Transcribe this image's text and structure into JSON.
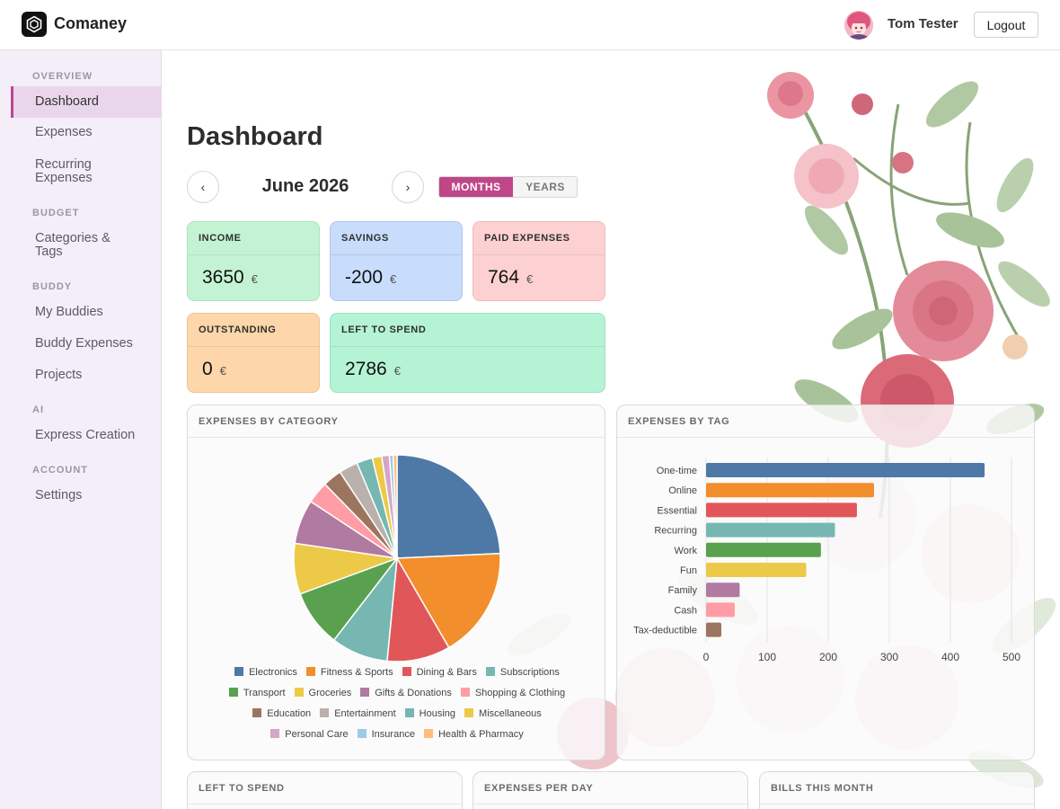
{
  "header": {
    "app_name": "Comaney",
    "user_name": "Tom Tester",
    "logout_label": "Logout",
    "logo_icon": "hexagon-logo-icon",
    "avatar_icon": "user-avatar"
  },
  "sidebar": {
    "sections": [
      {
        "title": "OVERVIEW",
        "items": [
          {
            "label": "Dashboard",
            "active": true
          }
        ]
      },
      {
        "title": "",
        "items": [
          {
            "label": "Expenses"
          },
          {
            "label": "Recurring Expenses"
          }
        ]
      },
      {
        "title": "BUDGET",
        "items": [
          {
            "label": "Categories & Tags"
          }
        ]
      },
      {
        "title": "BUDDY",
        "items": [
          {
            "label": "My Buddies"
          },
          {
            "label": "Buddy Expenses"
          },
          {
            "label": "Projects"
          }
        ]
      },
      {
        "title": "AI",
        "items": [
          {
            "label": "Express Creation"
          }
        ]
      },
      {
        "title": "ACCOUNT",
        "items": [
          {
            "label": "Settings"
          }
        ]
      }
    ],
    "overview_title": "OVERVIEW",
    "budget_title": "BUDGET",
    "buddy_title": "BUDDY",
    "ai_title": "AI",
    "account_title": "ACCOUNT",
    "dashboard": "Dashboard",
    "expenses": "Expenses",
    "recurring_line1": "Recurring",
    "recurring_line2": "Expenses",
    "categories_line1": "Categories &",
    "categories_line2": "Tags",
    "my_buddies": "My Buddies",
    "buddy_expenses": "Buddy Expenses",
    "projects": "Projects",
    "express_creation": "Express Creation",
    "settings": "Settings"
  },
  "main": {
    "title": "Dashboard",
    "period": "June 2026",
    "prev_icon": "chevron-left-icon",
    "next_icon": "chevron-right-icon",
    "prev_glyph": "‹",
    "next_glyph": "›",
    "toggle_months": "MONTHS",
    "toggle_years": "YEARS",
    "toggle_active": "MONTHS"
  },
  "stats": {
    "income": {
      "label": "INCOME",
      "value": "3650",
      "currency": "€",
      "color": "#c3f3d3"
    },
    "savings": {
      "label": "SAVINGS",
      "value": "-200",
      "currency": "€",
      "color": "#c8dcfb"
    },
    "paid": {
      "label": "PAID EXPENSES",
      "value": "764",
      "currency": "€",
      "color": "#fdd1d1"
    },
    "outstanding": {
      "label": "OUTSTANDING",
      "value": "0",
      "currency": "€",
      "color": "#fdd6a9"
    },
    "left": {
      "label": "LEFT TO SPEND",
      "value": "2786",
      "currency": "€",
      "color": "#b4f3d4"
    }
  },
  "cards": {
    "category": "EXPENSES BY CATEGORY",
    "tag": "EXPENSES BY TAG",
    "left_to_spend": "LEFT TO SPEND",
    "per_day": "EXPENSES PER DAY",
    "bills": "BILLS THIS MONTH"
  },
  "chart_data": [
    {
      "type": "pie",
      "title": "EXPENSES BY CATEGORY",
      "legend_position": "bottom",
      "slices": [
        {
          "label": "Electronics",
          "value": 24.5,
          "color": "#4e79a7"
        },
        {
          "label": "Fitness & Sports",
          "value": 17.5,
          "color": "#f28e2b"
        },
        {
          "label": "Dining & Bars",
          "value": 10.0,
          "color": "#e15759"
        },
        {
          "label": "Subscriptions",
          "value": 9.0,
          "color": "#76b7b2"
        },
        {
          "label": "Transport",
          "value": 9.0,
          "color": "#59a14f"
        },
        {
          "label": "Groceries",
          "value": 8.0,
          "color": "#edc948"
        },
        {
          "label": "Gifts & Donations",
          "value": 7.0,
          "color": "#b07aa1"
        },
        {
          "label": "Shopping & Clothing",
          "value": 3.5,
          "color": "#ff9da7"
        },
        {
          "label": "Education",
          "value": 3.0,
          "color": "#9c755f"
        },
        {
          "label": "Entertainment",
          "value": 3.0,
          "color": "#bab0ac"
        },
        {
          "label": "Housing",
          "value": 2.5,
          "color": "#76b7b2"
        },
        {
          "label": "Miscellaneous",
          "value": 1.5,
          "color": "#edc948"
        },
        {
          "label": "Personal Care",
          "value": 1.2,
          "color": "#d4a6c8"
        },
        {
          "label": "Insurance",
          "value": 0.6,
          "color": "#9ecae9"
        },
        {
          "label": "Health & Pharmacy",
          "value": 0.6,
          "color": "#ffbe7d"
        }
      ]
    },
    {
      "type": "bar",
      "orientation": "horizontal",
      "title": "EXPENSES BY TAG",
      "categories": [
        "One-time",
        "Online",
        "Essential",
        "Recurring",
        "Work",
        "Fun",
        "Family",
        "Cash",
        "Tax-deductible"
      ],
      "values": [
        456,
        275,
        247,
        211,
        188,
        164,
        55,
        47,
        25
      ],
      "colors": [
        "#4e79a7",
        "#f28e2b",
        "#e15759",
        "#76b7b2",
        "#59a14f",
        "#edc948",
        "#b07aa1",
        "#ff9da7",
        "#9c755f"
      ],
      "xlim": [
        0,
        500
      ],
      "xticks": [
        0,
        100,
        200,
        300,
        400,
        500
      ],
      "grid": true
    }
  ]
}
